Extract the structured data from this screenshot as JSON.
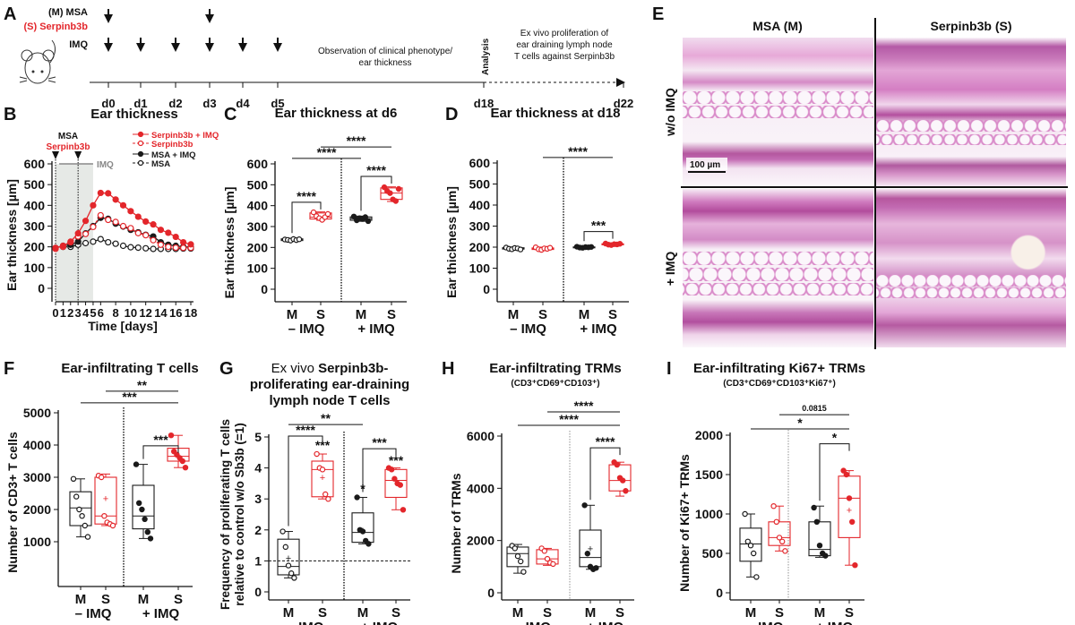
{
  "panel_letters": {
    "A": "A",
    "B": "B",
    "C": "C",
    "D": "D",
    "E": "E",
    "F": "F",
    "G": "G",
    "H": "H",
    "I": "I"
  },
  "colors": {
    "serpinb3b": "#e3262b",
    "msa": "#1a1a1a",
    "imq_shading": "#e6e9e6"
  },
  "timeline": {
    "msa_label": "(M) MSA",
    "serpinb3b_label": "(S) Serpinb3b",
    "imq_label": "IMQ",
    "days": [
      "d0",
      "d1",
      "d2",
      "d3",
      "d4",
      "d5",
      "d18",
      "d22"
    ],
    "msa_injection_days": [
      "d0",
      "d3"
    ],
    "imq_days": [
      "d0",
      "d1",
      "d2",
      "d3",
      "d4",
      "d5"
    ],
    "observation_text": [
      "Observation of clinical phenotype/",
      "ear thickness"
    ],
    "analysis_label": "Analysis",
    "ex_vivo_text": [
      "Ex vivo proliferation of",
      "ear draining lymph node",
      "T cells against Serpinb3b"
    ],
    "mouse_icon": "mouse-icon"
  },
  "histology": {
    "col_headers": [
      "MSA (M)",
      "Serpinb3b (S)"
    ],
    "row_labels": [
      "w/o IMQ",
      "+ IMQ"
    ],
    "scale_bar": "100 µm"
  },
  "chart_data": [
    {
      "panel": "B",
      "type": "line",
      "title": "Ear thickness",
      "xlabel": "Time [days]",
      "ylabel": "Ear thickness [µm]",
      "ylim": [
        0,
        600
      ],
      "yticks": [
        0,
        100,
        200,
        300,
        400,
        500,
        600
      ],
      "xticks": [
        0,
        1,
        2,
        3,
        4,
        5,
        6,
        8,
        10,
        12,
        14,
        16,
        18
      ],
      "injection_labels": {
        "msa": "MSA",
        "serpinb3b": "Serpinb3b",
        "imq": "IMQ"
      },
      "injection_days": [
        0,
        3
      ],
      "imq_period": [
        0,
        5
      ],
      "legend_position": "top-right",
      "x": [
        0,
        1,
        2,
        3,
        4,
        5,
        6,
        7,
        8,
        9,
        10,
        11,
        12,
        13,
        14,
        15,
        16,
        17,
        18
      ],
      "series": [
        {
          "name": "Serpinb3b + IMQ",
          "color": "#e3262b",
          "filled": true,
          "dashed": false,
          "values": [
            195,
            205,
            225,
            265,
            325,
            400,
            460,
            458,
            428,
            400,
            372,
            345,
            322,
            308,
            282,
            268,
            248,
            222,
            212
          ]
        },
        {
          "name": "Serpinb3b",
          "color": "#e3262b",
          "filled": false,
          "dashed": true,
          "values": [
            190,
            200,
            222,
            250,
            262,
            296,
            352,
            330,
            320,
            300,
            290,
            266,
            256,
            232,
            210,
            200,
            196,
            195,
            195
          ]
        },
        {
          "name": "MSA + IMQ",
          "color": "#1a1a1a",
          "filled": true,
          "dashed": false,
          "values": [
            195,
            205,
            210,
            225,
            265,
            300,
            340,
            335,
            312,
            298,
            282,
            270,
            258,
            250,
            222,
            210,
            205,
            200,
            198
          ]
        },
        {
          "name": "MSA",
          "color": "#1a1a1a",
          "filled": false,
          "dashed": true,
          "values": [
            193,
            200,
            200,
            210,
            218,
            225,
            237,
            222,
            215,
            205,
            198,
            196,
            193,
            190,
            190,
            190,
            190,
            192,
            192
          ]
        }
      ]
    },
    {
      "panel": "C",
      "type": "box",
      "title": "Ear thickness at d6",
      "ylabel": "Ear thickness [µm]",
      "ylim": [
        0,
        600
      ],
      "yticks": [
        0,
        100,
        200,
        300,
        400,
        500,
        600
      ],
      "group_labels": [
        "– IMQ",
        "+ IMQ"
      ],
      "groups": [
        {
          "label": "M",
          "color": "#1a1a1a",
          "filled": false,
          "min": 230,
          "q1": 233,
          "median": 237,
          "q3": 241,
          "max": 243,
          "points": [
            238,
            236,
            233,
            240,
            235,
            239
          ]
        },
        {
          "label": "S",
          "color": "#e3262b",
          "filled": false,
          "min": 330,
          "q1": 336,
          "median": 345,
          "q3": 365,
          "max": 370,
          "points": [
            368,
            350,
            340,
            332,
            345,
            360
          ]
        },
        {
          "label": "M",
          "color": "#1a1a1a",
          "filled": true,
          "min": 325,
          "q1": 330,
          "median": 338,
          "q3": 346,
          "max": 350,
          "points": [
            348,
            330,
            340,
            336,
            345,
            326
          ]
        },
        {
          "label": "S",
          "color": "#e3262b",
          "filled": true,
          "min": 420,
          "q1": 430,
          "median": 460,
          "q3": 485,
          "max": 490,
          "points": [
            488,
            470,
            460,
            430,
            422,
            480
          ]
        }
      ],
      "significance": [
        {
          "from": 0,
          "to": 1,
          "y": 416,
          "label": "****",
          "bracket": true
        },
        {
          "from": 2,
          "to": 3,
          "y": 540,
          "label": "****",
          "bracket": true
        },
        {
          "from": 0,
          "to": 2,
          "y": 626,
          "label": "****",
          "bracket": false
        },
        {
          "from": 1,
          "to": 3,
          "y": 681,
          "label": "****",
          "bracket": false
        }
      ]
    },
    {
      "panel": "D",
      "type": "box",
      "title": "Ear thickness at d18",
      "ylabel": "Ear thickness [µm]",
      "ylim": [
        0,
        600
      ],
      "yticks": [
        0,
        100,
        200,
        300,
        400,
        500,
        600
      ],
      "group_labels": [
        "– IMQ",
        "+ IMQ"
      ],
      "groups": [
        {
          "label": "M",
          "color": "#1a1a1a",
          "filled": false,
          "min": 188,
          "q1": 191,
          "median": 194,
          "q3": 197,
          "max": 200,
          "points": [
            198,
            192,
            190,
            196,
            194,
            189
          ]
        },
        {
          "label": "S",
          "color": "#e3262b",
          "filled": false,
          "min": 186,
          "q1": 189,
          "median": 192,
          "q3": 196,
          "max": 200,
          "points": [
            199,
            190,
            187,
            194,
            192,
            197
          ]
        },
        {
          "label": "M",
          "color": "#1a1a1a",
          "filled": true,
          "min": 196,
          "q1": 197,
          "median": 199,
          "q3": 201,
          "max": 203,
          "points": [
            202,
            198,
            197,
            200,
            199,
            201
          ]
        },
        {
          "label": "S",
          "color": "#e3262b",
          "filled": true,
          "min": 210,
          "q1": 211,
          "median": 213,
          "q3": 216,
          "max": 218,
          "points": [
            217,
            212,
            210,
            214,
            213,
            216
          ]
        }
      ],
      "significance": [
        {
          "from": 2,
          "to": 3,
          "y": 274,
          "label": "***",
          "bracket": true
        },
        {
          "from": 1,
          "to": 3,
          "y": 626,
          "label": "****",
          "bracket": false
        }
      ]
    },
    {
      "panel": "F",
      "type": "box",
      "title": "Ear-infiltrating T cells",
      "ylabel": "Number of CD3+ T cells",
      "ylim": [
        0,
        5000
      ],
      "yticks": [
        1000,
        2000,
        3000,
        4000,
        5000
      ],
      "group_labels": [
        "– IMQ",
        "+ IMQ"
      ],
      "groups": [
        {
          "label": "M",
          "color": "#1a1a1a",
          "filled": false,
          "min": 1150,
          "q1": 1500,
          "median": 2050,
          "q3": 2550,
          "max": 2950,
          "points": [
            2950,
            2400,
            2000,
            1800,
            1500,
            1150
          ]
        },
        {
          "label": "S",
          "color": "#e3262b",
          "filled": false,
          "min": 1500,
          "q1": 1550,
          "median": 1800,
          "q3": 3000,
          "max": 3100,
          "mean": 2350,
          "points": [
            3050,
            3000,
            1800,
            1600,
            1550,
            1500
          ]
        },
        {
          "label": "M",
          "color": "#1a1a1a",
          "filled": true,
          "min": 1100,
          "q1": 1400,
          "median": 1800,
          "q3": 2750,
          "max": 3400,
          "points": [
            3400,
            2200,
            2000,
            1700,
            1300,
            1100
          ]
        },
        {
          "label": "S",
          "color": "#e3262b",
          "filled": true,
          "min": 3300,
          "q1": 3500,
          "median": 3650,
          "q3": 3900,
          "max": 4300,
          "points": [
            4300,
            3800,
            3700,
            3600,
            3500,
            3300
          ]
        }
      ],
      "significance": [
        {
          "from": 2,
          "to": 3,
          "y": 3975,
          "label": "***",
          "bracket": true
        },
        {
          "from": 0,
          "to": 3,
          "y": 5310,
          "label": "***",
          "bracket": false
        },
        {
          "from": 1,
          "to": 3,
          "y": 5670,
          "label": "**",
          "bracket": false
        }
      ]
    },
    {
      "panel": "G",
      "type": "box",
      "title_parts": [
        {
          "text": "Ex vivo ",
          "bold": false
        },
        {
          "text": "Serpinb3b-",
          "bold": true
        }
      ],
      "title_lines": [
        "proliferating ear-draining",
        "lymph node T cells"
      ],
      "ylabel_lines": [
        "Frequency of proliferating T cells",
        "relative to control w/o Sb3b (=1)"
      ],
      "ylim": [
        0,
        5
      ],
      "yticks": [
        0,
        1,
        2,
        3,
        4,
        5
      ],
      "reference_line": 1,
      "group_labels": [
        "– IMQ",
        "+ IMQ"
      ],
      "groups": [
        {
          "label": "M",
          "color": "#1a1a1a",
          "filled": false,
          "min": 0.45,
          "q1": 0.55,
          "median": 0.82,
          "q3": 1.7,
          "max": 1.95,
          "mean": 1.1,
          "points": [
            1.95,
            1.45,
            0.85,
            0.6,
            0.45
          ]
        },
        {
          "label": "S",
          "color": "#e3262b",
          "filled": false,
          "min": 3.0,
          "q1": 3.07,
          "median": 3.95,
          "q3": 4.22,
          "max": 4.45,
          "mean": 3.7,
          "points": [
            4.45,
            4.0,
            3.95,
            3.15,
            3.0
          ]
        },
        {
          "label": "M",
          "color": "#1a1a1a",
          "filled": true,
          "min": 1.55,
          "q1": 1.6,
          "median": 1.92,
          "q3": 2.55,
          "max": 3.05,
          "mean": 2.0,
          "points": [
            3.05,
            2.0,
            1.95,
            1.65,
            1.55
          ]
        },
        {
          "label": "S",
          "color": "#e3262b",
          "filled": true,
          "min": 2.65,
          "q1": 3.05,
          "median": 3.6,
          "q3": 3.95,
          "max": 4.0,
          "points": [
            4.0,
            3.95,
            3.65,
            3.5,
            3.45,
            2.65
          ]
        }
      ],
      "significance": [
        {
          "from": 0,
          "to": 1,
          "y": 5.03,
          "label": "****",
          "bracket": true
        },
        {
          "from": 2,
          "to": 3,
          "y": 4.62,
          "label": "***",
          "bracket": true
        },
        {
          "from": 0,
          "to": 2,
          "y": 5.4,
          "label": "**",
          "bracket": false
        }
      ],
      "annotations": [
        {
          "group": 1,
          "y": 4.6,
          "label": "***"
        },
        {
          "group": 3,
          "y": 4.1,
          "label": "***"
        },
        {
          "group": 2,
          "y": 3.2,
          "label": "*"
        }
      ]
    },
    {
      "panel": "H",
      "type": "box",
      "title": "Ear-infiltrating TRMs",
      "subtitle": "(CD3⁺CD69⁺CD103⁺)",
      "ylabel": "Number of TRMs",
      "ylim": [
        0,
        6000
      ],
      "yticks": [
        0,
        2000,
        4000,
        6000
      ],
      "group_labels": [
        "– IMQ",
        "+ IMQ"
      ],
      "divider_style": "thin",
      "groups": [
        {
          "label": "M",
          "color": "#1a1a1a",
          "filled": false,
          "min": 750,
          "q1": 1000,
          "median": 1500,
          "q3": 1750,
          "max": 1850,
          "points": [
            1800,
            1700,
            1400,
            1200,
            800
          ]
        },
        {
          "label": "S",
          "color": "#e3262b",
          "filled": false,
          "min": 1050,
          "q1": 1100,
          "median": 1300,
          "q3": 1650,
          "max": 1700,
          "points": [
            1700,
            1600,
            1300,
            1150,
            1100
          ]
        },
        {
          "label": "M",
          "color": "#1a1a1a",
          "filled": true,
          "min": 900,
          "q1": 1000,
          "median": 1350,
          "q3": 2400,
          "max": 3350,
          "mean": 1700,
          "points": [
            3350,
            1500,
            1000,
            900,
            950
          ]
        },
        {
          "label": "S",
          "color": "#e3262b",
          "filled": true,
          "min": 3700,
          "q1": 3900,
          "median": 4300,
          "q3": 4900,
          "max": 5000,
          "points": [
            5000,
            4900,
            4400,
            4300,
            3900
          ]
        }
      ],
      "significance": [
        {
          "from": 2,
          "to": 3,
          "y": 5550,
          "label": "****",
          "bracket": true
        },
        {
          "from": 0,
          "to": 3,
          "y": 6410,
          "label": "****",
          "bracket": false
        },
        {
          "from": 1,
          "to": 3,
          "y": 6925,
          "label": "****",
          "bracket": false
        }
      ]
    },
    {
      "panel": "I",
      "type": "box",
      "title": "Ear-infiltrating Ki67+ TRMs",
      "subtitle": "(CD3⁺CD69⁺CD103⁺Ki67⁺)",
      "ylabel": "Number of Ki67+ TRMs",
      "ylim": [
        0,
        2000
      ],
      "yticks": [
        0,
        500,
        1000,
        1500,
        2000
      ],
      "group_labels": [
        "– IMQ",
        "+ IMQ"
      ],
      "divider_style": "thin",
      "groups": [
        {
          "label": "M",
          "color": "#1a1a1a",
          "filled": false,
          "min": 200,
          "q1": 400,
          "median": 620,
          "q3": 820,
          "max": 1000,
          "points": [
            1000,
            650,
            600,
            500,
            200
          ]
        },
        {
          "label": "S",
          "color": "#e3262b",
          "filled": false,
          "min": 530,
          "q1": 600,
          "median": 700,
          "q3": 900,
          "max": 1100,
          "points": [
            1100,
            900,
            700,
            650,
            530
          ]
        },
        {
          "label": "M",
          "color": "#1a1a1a",
          "filled": true,
          "min": 450,
          "q1": 470,
          "median": 550,
          "q3": 900,
          "max": 1100,
          "points": [
            1080,
            900,
            600,
            500,
            470
          ]
        },
        {
          "label": "S",
          "color": "#e3262b",
          "filled": true,
          "min": 350,
          "q1": 700,
          "median": 1200,
          "q3": 1480,
          "max": 1550,
          "mean": 1050,
          "points": [
            1550,
            1500,
            1200,
            900,
            350
          ]
        }
      ],
      "significance": [
        {
          "from": 2,
          "to": 3,
          "y": 1890,
          "label": "*",
          "bracket": true
        },
        {
          "from": 0,
          "to": 3,
          "y": 2080,
          "label": "*",
          "bracket": false
        },
        {
          "from": 1,
          "to": 3,
          "y": 2260,
          "label": "0.0815",
          "bracket": false
        }
      ]
    }
  ]
}
